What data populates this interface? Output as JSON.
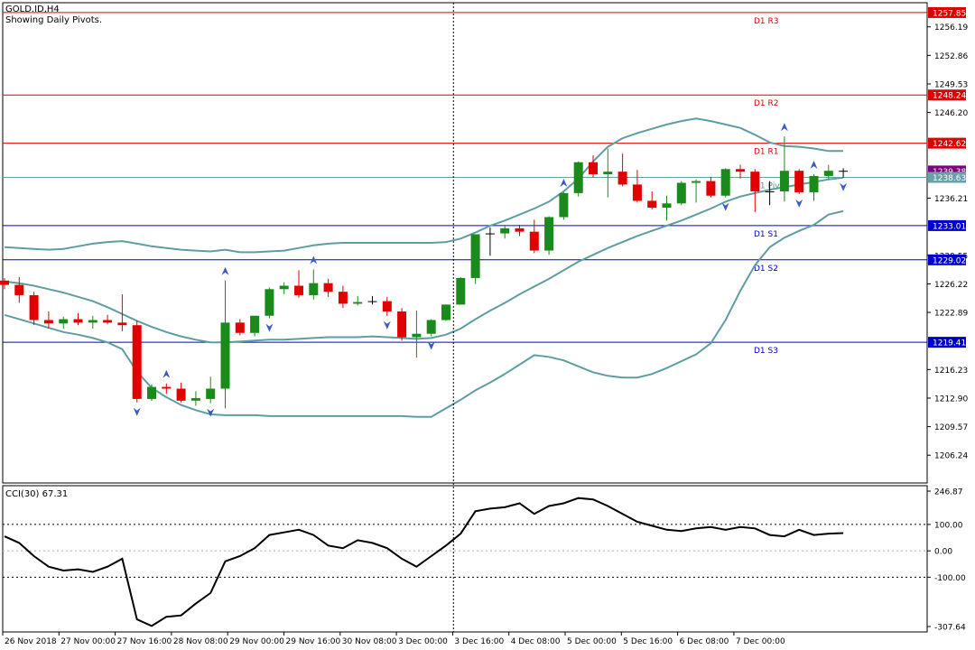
{
  "header": {
    "symbol": "GOLD.ID,H4",
    "subtitle": "Showing Daily Pivots."
  },
  "chart_data": {
    "type": "candlestick",
    "ylim": [
      1203.0,
      1259.0
    ],
    "price_ticks": [
      "1257.85",
      "1256.19",
      "1252.86",
      "1249.53",
      "1248.24",
      "1246.20",
      "1242.62",
      "1239.38",
      "1238.63",
      "1236.21",
      "1233.01",
      "1229.55",
      "1229.02",
      "1226.22",
      "1222.89",
      "1219.41",
      "1216.23",
      "1212.90",
      "1209.57",
      "1206.24"
    ],
    "pivot_lines": [
      {
        "name": "D1 R3",
        "value": 1257.85,
        "color": "#dd0000",
        "text_color": "#dd0000"
      },
      {
        "name": "D1 R2",
        "value": 1248.24,
        "color": "#dd0000",
        "text_color": "#dd0000"
      },
      {
        "name": "D1 R1",
        "value": 1242.62,
        "color": "#dd0000",
        "text_color": "#dd0000"
      },
      {
        "name": "D1 Pivot",
        "value": 1238.63,
        "color": "#6aa0a8",
        "text_color": "#5f8f96"
      },
      {
        "name": "D1 S1",
        "value": 1233.01,
        "color": "#0000cc",
        "text_color": "#0000cc"
      },
      {
        "name": "D1 S2",
        "value": 1229.02,
        "color": "#0000cc",
        "text_color": "#0000cc"
      },
      {
        "name": "D1 S3",
        "value": 1219.41,
        "color": "#0000cc",
        "text_color": "#0000cc"
      }
    ],
    "current_price": {
      "value": "1239.38",
      "color": "#800080"
    },
    "candles": [
      [
        1226.6,
        1226.9,
        1225.6,
        1226.1
      ],
      [
        1226.1,
        1227.0,
        1224.0,
        1224.9
      ],
      [
        1224.9,
        1225.3,
        1221.4,
        1222.0
      ],
      [
        1222.0,
        1223.0,
        1221.0,
        1221.6
      ],
      [
        1221.6,
        1222.4,
        1221.0,
        1222.1
      ],
      [
        1222.1,
        1222.8,
        1221.4,
        1221.7
      ],
      [
        1221.7,
        1222.5,
        1221.0,
        1222.0
      ],
      [
        1222.0,
        1222.6,
        1221.5,
        1221.7
      ],
      [
        1221.7,
        1225.0,
        1220.7,
        1221.4
      ],
      [
        1221.4,
        1221.9,
        1212.4,
        1212.8
      ],
      [
        1212.8,
        1214.5,
        1212.6,
        1214.2
      ],
      [
        1214.2,
        1214.6,
        1213.4,
        1214.0
      ],
      [
        1214.0,
        1214.7,
        1212.4,
        1212.6
      ],
      [
        1212.6,
        1213.7,
        1212.0,
        1212.9
      ],
      [
        1212.8,
        1215.4,
        1212.3,
        1214.0
      ],
      [
        1214.0,
        1226.6,
        1211.7,
        1221.7
      ],
      [
        1221.7,
        1222.1,
        1220.2,
        1220.5
      ],
      [
        1220.5,
        1222.4,
        1220.1,
        1222.5
      ],
      [
        1222.5,
        1225.8,
        1222.2,
        1225.6
      ],
      [
        1225.6,
        1226.4,
        1225.0,
        1226.0
      ],
      [
        1226.0,
        1227.8,
        1224.6,
        1224.9
      ],
      [
        1224.9,
        1227.9,
        1224.4,
        1226.3
      ],
      [
        1226.3,
        1226.8,
        1224.7,
        1225.3
      ],
      [
        1225.3,
        1226.0,
        1223.4,
        1223.9
      ],
      [
        1223.9,
        1224.8,
        1223.7,
        1224.1
      ],
      [
        1224.1,
        1224.8,
        1223.8,
        1224.2
      ],
      [
        1224.2,
        1224.7,
        1222.5,
        1223.0
      ],
      [
        1223.0,
        1223.4,
        1219.6,
        1220.0
      ],
      [
        1220.0,
        1223.1,
        1217.6,
        1220.4
      ],
      [
        1220.4,
        1222.1,
        1220.1,
        1222.0
      ],
      [
        1222.0,
        1223.8,
        1221.9,
        1223.8
      ],
      [
        1223.8,
        1227.0,
        1223.8,
        1226.9
      ],
      [
        1226.9,
        1232.0,
        1226.2,
        1232.0
      ],
      [
        1232.0,
        1232.8,
        1229.5,
        1232.1
      ],
      [
        1232.1,
        1233.1,
        1231.5,
        1232.7
      ],
      [
        1232.7,
        1233.1,
        1231.8,
        1232.3
      ],
      [
        1232.3,
        1233.7,
        1229.8,
        1230.1
      ],
      [
        1230.1,
        1234.1,
        1229.6,
        1234.0
      ],
      [
        1234.0,
        1236.9,
        1233.7,
        1236.8
      ],
      [
        1236.8,
        1240.5,
        1236.4,
        1240.4
      ],
      [
        1240.4,
        1241.2,
        1238.6,
        1239.0
      ],
      [
        1239.0,
        1242.0,
        1236.3,
        1239.3
      ],
      [
        1239.3,
        1241.4,
        1237.6,
        1237.8
      ],
      [
        1237.8,
        1239.5,
        1235.7,
        1235.9
      ],
      [
        1235.9,
        1237.0,
        1234.9,
        1235.1
      ],
      [
        1235.1,
        1236.5,
        1233.6,
        1235.6
      ],
      [
        1235.6,
        1238.2,
        1235.4,
        1238.0
      ],
      [
        1238.0,
        1238.4,
        1235.7,
        1238.2
      ],
      [
        1238.2,
        1238.7,
        1236.3,
        1236.5
      ],
      [
        1236.5,
        1239.7,
        1236.3,
        1239.6
      ],
      [
        1239.6,
        1240.1,
        1238.5,
        1239.3
      ],
      [
        1239.3,
        1239.6,
        1234.6,
        1237.0
      ],
      [
        1237.0,
        1238.2,
        1235.4,
        1237.0
      ],
      [
        1237.0,
        1243.4,
        1235.8,
        1239.4
      ],
      [
        1239.4,
        1239.6,
        1236.7,
        1236.9
      ],
      [
        1236.9,
        1239.0,
        1235.9,
        1238.8
      ],
      [
        1238.8,
        1240.1,
        1238.4,
        1239.4
      ],
      [
        1239.4,
        1239.7,
        1238.6,
        1239.38
      ]
    ],
    "bands": {
      "color": "#5f9ea0",
      "upper": [
        1230.5,
        1230.4,
        1230.3,
        1230.2,
        1230.3,
        1230.6,
        1230.9,
        1231.1,
        1231.2,
        1230.9,
        1230.6,
        1230.4,
        1230.2,
        1230.1,
        1230.0,
        1230.2,
        1229.9,
        1229.9,
        1230.0,
        1230.1,
        1230.4,
        1230.7,
        1230.9,
        1231.0,
        1231.0,
        1231.0,
        1231.0,
        1231.0,
        1231.0,
        1231.0,
        1231.1,
        1231.5,
        1232.2,
        1233.0,
        1233.6,
        1234.3,
        1235.0,
        1235.8,
        1237.0,
        1238.5,
        1240.5,
        1242.2,
        1243.2,
        1243.8,
        1244.3,
        1244.8,
        1245.2,
        1245.5,
        1245.2,
        1244.8,
        1244.4,
        1243.6,
        1242.7,
        1242.3,
        1242.2,
        1242.0,
        1241.7,
        1241.7
      ],
      "middle": [
        1226.5,
        1226.3,
        1226.0,
        1225.6,
        1225.2,
        1224.7,
        1224.2,
        1223.5,
        1222.7,
        1221.9,
        1221.2,
        1220.6,
        1220.1,
        1219.7,
        1219.4,
        1219.4,
        1219.5,
        1219.6,
        1219.7,
        1219.7,
        1219.8,
        1219.9,
        1220.0,
        1220.0,
        1220.0,
        1220.1,
        1220.0,
        1219.9,
        1219.8,
        1219.9,
        1220.3,
        1221.0,
        1222.1,
        1223.1,
        1224.0,
        1225.0,
        1225.9,
        1226.8,
        1227.8,
        1228.8,
        1229.6,
        1230.4,
        1231.1,
        1231.8,
        1232.4,
        1233.0,
        1233.6,
        1234.3,
        1235.0,
        1235.8,
        1236.4,
        1236.8,
        1237.2,
        1237.5,
        1237.8,
        1238.1,
        1238.4,
        1238.6
      ],
      "lower": [
        1222.6,
        1222.1,
        1221.6,
        1221.1,
        1220.6,
        1220.3,
        1219.9,
        1219.4,
        1218.6,
        1216.0,
        1214.1,
        1213.0,
        1212.1,
        1211.5,
        1211.0,
        1210.9,
        1210.9,
        1210.9,
        1210.8,
        1210.8,
        1210.8,
        1210.8,
        1210.8,
        1210.8,
        1210.8,
        1210.8,
        1210.8,
        1210.8,
        1210.7,
        1210.7,
        1211.7,
        1212.7,
        1213.8,
        1214.7,
        1215.7,
        1216.8,
        1217.9,
        1217.7,
        1217.3,
        1216.6,
        1215.9,
        1215.5,
        1215.3,
        1215.3,
        1215.7,
        1216.4,
        1217.2,
        1218.0,
        1219.3,
        1222.0,
        1225.4,
        1228.4,
        1230.5,
        1231.6,
        1232.4,
        1233.1,
        1234.3,
        1234.7
      ]
    },
    "fractals_up": [
      11,
      15,
      21,
      38,
      53,
      55
    ],
    "fractals_down": [
      9,
      14,
      18,
      26,
      29,
      49,
      54,
      57
    ],
    "vertical_marker_index": 31,
    "x_labels": [
      "26 Nov 2018",
      "27 Nov 00:00",
      "27 Nov 16:00",
      "28 Nov 08:00",
      "29 Nov 00:00",
      "29 Nov 16:00",
      "30 Nov 08:00",
      "3 Dec 00:00",
      "3 Dec 16:00",
      "4 Dec 08:00",
      "5 Dec 00:00",
      "5 Dec 16:00",
      "6 Dec 08:00",
      "7 Dec 00:00"
    ],
    "indicator": {
      "label": "CCI(30) 67.31",
      "ylim": [
        -307.64,
        246.87
      ],
      "ticks": [
        "246.87",
        "100.00",
        "0.00",
        "-100.00",
        "-307.64"
      ],
      "levels": [
        100,
        0,
        -100
      ],
      "values": [
        55,
        30,
        -20,
        -60,
        -75,
        -70,
        -80,
        -60,
        -30,
        -260,
        -285,
        -250,
        -245,
        -200,
        -160,
        -40,
        -20,
        10,
        60,
        70,
        80,
        60,
        20,
        10,
        40,
        30,
        10,
        -30,
        -60,
        -20,
        20,
        65,
        150,
        160,
        165,
        180,
        140,
        170,
        180,
        200,
        195,
        170,
        140,
        110,
        95,
        80,
        75,
        85,
        90,
        80,
        90,
        85,
        60,
        55,
        80,
        60,
        65,
        67.31
      ]
    }
  }
}
